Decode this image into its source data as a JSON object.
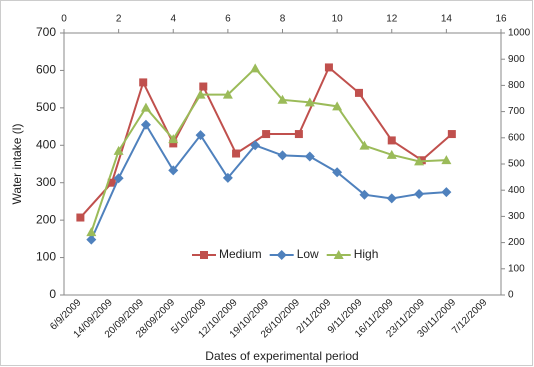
{
  "chart_data": {
    "type": "line",
    "y_label": "Water intake (l)",
    "x_label": "Dates of experimental period",
    "categories": [
      "6/9/2009",
      "14/09/2009",
      "20/09/2009",
      "28/09/2009",
      "5/10/2009",
      "12/10/2009",
      "19/10/2009",
      "26/10/2009",
      "2/11/2009",
      "9/11/2009",
      "16/11/2009",
      "23/11/2009",
      "30/11/2009",
      "7/12/2009"
    ],
    "xlim": [
      0,
      16
    ],
    "xticks": [
      0,
      2,
      4,
      6,
      8,
      10,
      12,
      14,
      16
    ],
    "ylim": [
      0,
      700
    ],
    "yticks": [
      0,
      100,
      200,
      300,
      400,
      500,
      600,
      700
    ],
    "y2lim": [
      0,
      1000
    ],
    "y2ticks": [
      0,
      100,
      200,
      300,
      400,
      500,
      600,
      700,
      800,
      900,
      1000
    ],
    "series": [
      {
        "name": "Medium",
        "color": "#c0504d",
        "marker": "square",
        "x": [
          0.6,
          1.75,
          2.9,
          4.0,
          5.1,
          6.3,
          7.4,
          8.6,
          9.7,
          10.8,
          12.0,
          13.1,
          14.2
        ],
        "values": [
          207,
          300,
          568,
          405,
          557,
          378,
          430,
          430,
          608,
          540,
          413,
          360,
          430
        ]
      },
      {
        "name": "Low",
        "color": "#4f81bd",
        "marker": "diamond",
        "x": [
          1,
          2,
          3,
          4,
          5,
          6,
          7,
          8,
          9,
          10,
          11,
          12,
          13,
          14
        ],
        "values": [
          148,
          312,
          455,
          333,
          427,
          313,
          400,
          373,
          370,
          328,
          268,
          258,
          270,
          275
        ]
      },
      {
        "name": "High",
        "color": "#9bbb59",
        "marker": "triangle",
        "axis": "y2",
        "x": [
          1,
          2,
          3,
          4,
          5,
          6,
          7,
          8,
          9,
          10,
          11,
          12,
          13,
          14
        ],
        "values": [
          240,
          550,
          715,
          595,
          765,
          765,
          865,
          745,
          735,
          720,
          570,
          535,
          510,
          515
        ]
      }
    ]
  }
}
